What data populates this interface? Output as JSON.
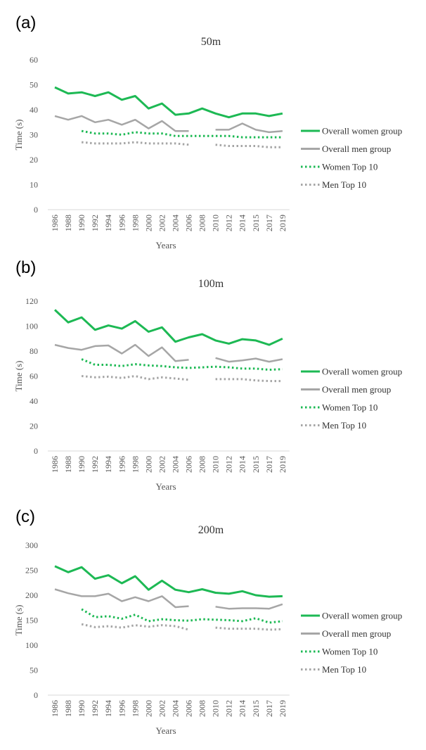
{
  "chart_data": [
    {
      "type": "line",
      "panel": "(a)",
      "title": "50m",
      "xlabel": "Years",
      "ylabel": "Time (s)",
      "ylim": [
        0,
        60
      ],
      "yticks": [
        0,
        10,
        20,
        30,
        40,
        50,
        60
      ],
      "categories": [
        "1986",
        "1988",
        "1990",
        "1992",
        "1994",
        "1996",
        "1998",
        "2000",
        "2002",
        "2004",
        "2006",
        "2008",
        "2010",
        "2012",
        "2014",
        "2015",
        "2017",
        "2019"
      ],
      "series": [
        {
          "name": "Overall women group",
          "color": "#1db954",
          "style": "solid",
          "values": [
            49,
            46.5,
            47,
            45.5,
            47,
            44,
            45.5,
            40.5,
            42.5,
            38,
            38.5,
            40.5,
            38.5,
            37,
            38.5,
            38.5,
            37.5,
            38.5
          ]
        },
        {
          "name": "Overall men group",
          "color": "#a6a6a6",
          "style": "solid",
          "values": [
            37.5,
            36,
            37.5,
            35,
            36,
            34,
            36,
            32.5,
            35.5,
            31.5,
            31.5,
            null,
            32,
            32,
            34.5,
            32,
            31,
            31.5
          ]
        },
        {
          "name": "Women Top 10",
          "color": "#1db954",
          "style": "dotted",
          "values": [
            null,
            null,
            31.5,
            30.5,
            30.5,
            30,
            31,
            30.5,
            30.5,
            29.5,
            29.5,
            29.5,
            29.5,
            29.5,
            29,
            29,
            29,
            29
          ]
        },
        {
          "name": "Men Top 10",
          "color": "#a6a6a6",
          "style": "dotted",
          "values": [
            null,
            null,
            27,
            26.5,
            26.5,
            26.5,
            27,
            26.5,
            26.5,
            26.5,
            26,
            null,
            26,
            25.5,
            25.5,
            25.5,
            25,
            25
          ]
        }
      ]
    },
    {
      "type": "line",
      "panel": "(b)",
      "title": "100m",
      "xlabel": "Years",
      "ylabel": "Time (s)",
      "ylim": [
        0,
        120
      ],
      "yticks": [
        0,
        20,
        40,
        60,
        80,
        100,
        120
      ],
      "categories": [
        "1986",
        "1988",
        "1990",
        "1992",
        "1994",
        "1996",
        "1998",
        "2000",
        "2002",
        "2004",
        "2006",
        "2008",
        "2010",
        "2012",
        "2014",
        "2015",
        "2017",
        "2019"
      ],
      "series": [
        {
          "name": "Overall women group",
          "color": "#1db954",
          "style": "solid",
          "values": [
            113,
            103,
            107,
            97,
            100.5,
            98,
            104,
            95.5,
            99,
            87.5,
            91,
            93.5,
            88.5,
            86,
            89.5,
            88.5,
            85,
            90
          ]
        },
        {
          "name": "Overall men group",
          "color": "#a6a6a6",
          "style": "solid",
          "values": [
            85,
            82.5,
            81,
            84,
            84.5,
            78,
            85,
            76,
            83,
            72,
            73,
            null,
            74.5,
            71.5,
            72.5,
            74,
            71.5,
            73.5
          ]
        },
        {
          "name": "Women Top 10",
          "color": "#1db954",
          "style": "dotted",
          "values": [
            null,
            null,
            73.5,
            69,
            69,
            68,
            69.5,
            68.5,
            68,
            67,
            66.5,
            67,
            67.5,
            67,
            66,
            66,
            65,
            65.5
          ]
        },
        {
          "name": "Men Top 10",
          "color": "#a6a6a6",
          "style": "dotted",
          "values": [
            null,
            null,
            60,
            59,
            59.5,
            58.5,
            60,
            57.5,
            59,
            58,
            57,
            null,
            57.5,
            57.5,
            57.5,
            56.5,
            56,
            56
          ]
        }
      ]
    },
    {
      "type": "line",
      "panel": "(c)",
      "title": "200m",
      "xlabel": "Years",
      "ylabel": "Time (s)",
      "ylim": [
        0,
        300
      ],
      "yticks": [
        0,
        50,
        100,
        150,
        200,
        250,
        300
      ],
      "categories": [
        "1986",
        "1988",
        "1990",
        "1992",
        "1994",
        "1996",
        "1998",
        "2000",
        "2002",
        "2004",
        "2006",
        "2008",
        "2010",
        "2012",
        "2014",
        "2015",
        "2017",
        "2019"
      ],
      "series": [
        {
          "name": "Overall women group",
          "color": "#1db954",
          "style": "solid",
          "values": [
            258,
            246,
            256,
            233,
            240,
            224,
            238,
            211,
            229,
            211,
            206,
            212,
            205,
            203,
            208,
            200,
            197,
            198
          ]
        },
        {
          "name": "Overall men group",
          "color": "#a6a6a6",
          "style": "solid",
          "values": [
            212,
            204,
            198,
            198,
            203,
            188,
            196,
            188,
            198,
            176,
            178,
            null,
            177,
            173,
            174,
            174,
            173,
            182
          ]
        },
        {
          "name": "Women Top 10",
          "color": "#1db954",
          "style": "dotted",
          "values": [
            null,
            null,
            172,
            156,
            158,
            153,
            161,
            148,
            152,
            150,
            149,
            152,
            151,
            150,
            148,
            154,
            145,
            148
          ]
        },
        {
          "name": "Men Top 10",
          "color": "#a6a6a6",
          "style": "dotted",
          "values": [
            null,
            null,
            142,
            136,
            138,
            135,
            140,
            137,
            140,
            138,
            131,
            null,
            135,
            133,
            133,
            133,
            131,
            132
          ]
        }
      ]
    }
  ]
}
